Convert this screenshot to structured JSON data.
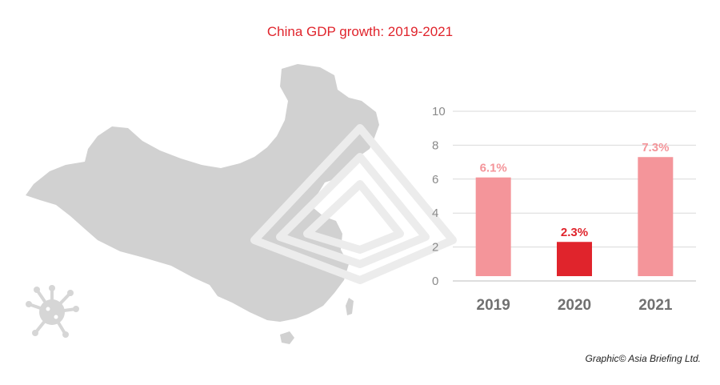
{
  "title": "China GDP growth: 2019-2021",
  "credit": "Graphic© Asia Briefing Ltd.",
  "colors": {
    "title": "#e0242c",
    "bar_light": "#f4959a",
    "bar_highlight": "#e0242c",
    "map": "#d1d1d1",
    "axis_text": "#8a8a8a",
    "grid": "#d9d9d9",
    "year_labels": "#707070"
  },
  "icons": {
    "virus": "virus-icon",
    "watermark": "watermark-logo"
  },
  "chart_data": {
    "type": "bar",
    "categories": [
      "2019",
      "2020",
      "2021"
    ],
    "values": [
      6.1,
      2.3,
      7.3
    ],
    "value_labels": [
      "6.1%",
      "2.3%",
      "7.3%"
    ],
    "highlight_index": 1,
    "ylim": [
      0,
      10
    ],
    "yticks": [
      0,
      2,
      4,
      6,
      8,
      10
    ],
    "grid": true,
    "xlabel": "",
    "ylabel": ""
  }
}
